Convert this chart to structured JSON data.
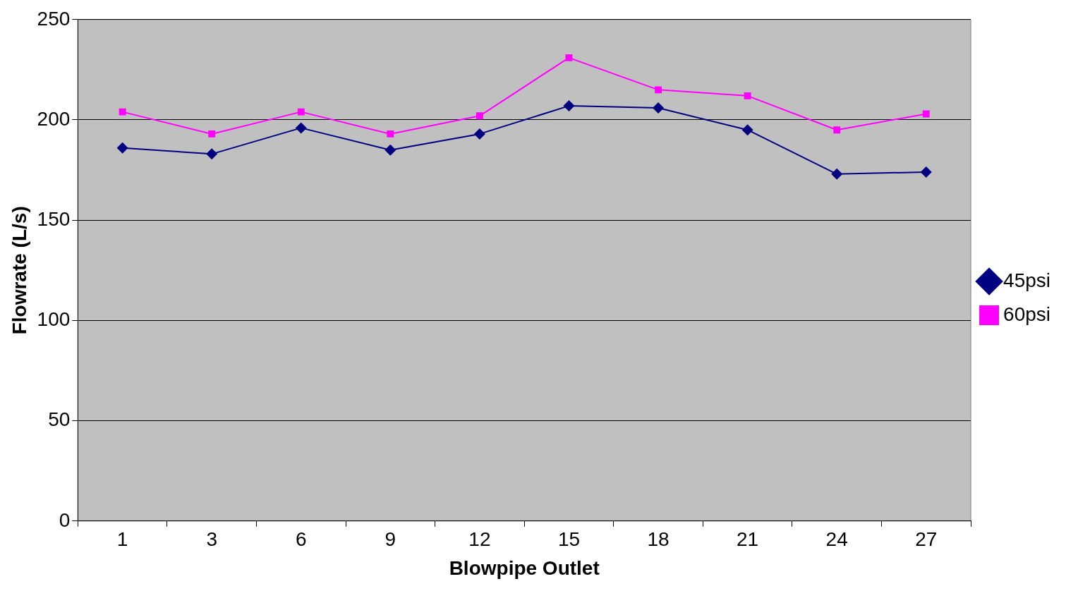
{
  "chart_data": {
    "type": "line",
    "xlabel": "Blowpipe Outlet",
    "ylabel": "Flowrate (L/s)",
    "categories": [
      "1",
      "3",
      "6",
      "9",
      "12",
      "15",
      "18",
      "21",
      "24",
      "27"
    ],
    "series": [
      {
        "name": "45psi",
        "color": "#000080",
        "marker": "diamond",
        "values": [
          186,
          183,
          196,
          185,
          193,
          207,
          206,
          195,
          173,
          174
        ]
      },
      {
        "name": "60psi",
        "color": "#ff00ff",
        "marker": "square",
        "values": [
          204,
          193,
          204,
          193,
          202,
          231,
          215,
          212,
          195,
          203
        ]
      }
    ],
    "ylim": [
      0,
      250
    ],
    "yticks": [
      0,
      50,
      100,
      150,
      200,
      250
    ],
    "grid": "y",
    "legend": "right",
    "line_style": "solid"
  }
}
